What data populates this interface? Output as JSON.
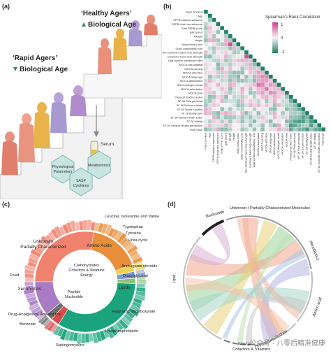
{
  "panels": {
    "a": {
      "label": "(a)",
      "healthy_line1": "‘Healthy Agers’",
      "healthy_line2": "Biological Age",
      "rapid_line1": "‘Rapid Agers’",
      "rapid_line2": "Biological Age",
      "serum": "Serum",
      "hex_left": [
        "Physiological",
        "Parameters"
      ],
      "hex_right": "Metabolomics",
      "hex_bottom": [
        "SASP",
        "Cytokines"
      ],
      "colors": {
        "teal": "#2a8a78",
        "lavender": "#a79ad0",
        "salmon": "#e49a86",
        "gold": "#e9b34c"
      }
    },
    "b": {
      "label": "(b)",
      "legend_title": "Spearman's Rank Correlation",
      "legend_ticks": [
        "1",
        "0",
        "-1"
      ],
      "variables": [
        "Years smoked",
        "Age",
        "SPPB balance subscore",
        "SPPB chair rise subscore",
        "Total SPPB score",
        "gait speed",
        "Weight",
        "Height",
        "Body mass index",
        "Duke comorbidity sum",
        "Non dominant hand Grip strength",
        "Dominant hand Grip strength",
        "Digit symbol substitution test",
        "MOCA-visuospatial",
        "MOCA-naming",
        "MOCA-attention",
        "MOCA-language",
        "MOCA-abstraction",
        "MOCA-delayed recall",
        "MOCA-orientation",
        "MOCA-total",
        "Physical function index",
        "SF 36 Role personal",
        "SF 36 Role emotional",
        "SF 36 Social function",
        "SF 36 Bodily pain",
        "SF 36 Mental Health index",
        "SF 36 Vitality",
        "SF 36 General Health perception",
        "Frail Scale"
      ],
      "colors": {
        "pos": "#d13a8c",
        "neg": "#1e7f66",
        "mid": "#f5f5f5"
      }
    },
    "c": {
      "label": "(c)",
      "inner_labels": [
        "Unknown/",
        "Partially Characterized",
        "Amino Acids",
        "Lipids",
        "Xenobiotics",
        "Carbohydrates",
        "Cofactors & Vitamins",
        "Energy",
        "Peptide",
        "Nucleotide"
      ],
      "outer_labels": [
        "Leucine, Isoleucine and Valine",
        "Tryptophan",
        "Tyrosine",
        "Urea cycle",
        "Androgenic steroids",
        "Diacylglycerol",
        "Fatty acid, dicarboxylate",
        "Lysophospholipids",
        "Sphingomyelins",
        "Food",
        "Drug-Analgesics, Anesthetics",
        "Benzoate"
      ],
      "colors": {
        "unknown": "#f0826e",
        "amino": "#e98f3b",
        "lipids": "#1aa37d",
        "xeno": "#a87bc4",
        "carb": "#f1d24c",
        "cofac": "#7d9bd1",
        "energy": "#8cc47a",
        "peptide": "#d94c4c",
        "nucleo": "#6e6e6e"
      }
    },
    "d": {
      "label": "(d)",
      "arc_labels": [
        "Nucleotide",
        "Unknown / Partially Characterized Molecules",
        "Xenobiotics",
        "Amino acid",
        "Carbohydrate",
        "Peptide",
        "Energy",
        "Cofactors & Vitamins",
        "Lipid"
      ]
    }
  },
  "watermark": "公众号 · 八零后精准健康"
}
